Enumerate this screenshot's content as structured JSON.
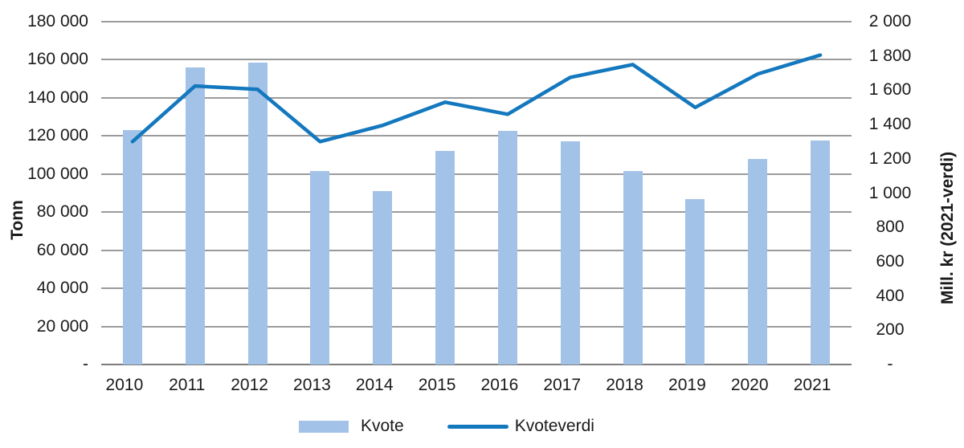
{
  "chart_data": {
    "type": "combo-bar-line",
    "categories": [
      "2010",
      "2011",
      "2012",
      "2013",
      "2014",
      "2015",
      "2016",
      "2017",
      "2018",
      "2019",
      "2020",
      "2021"
    ],
    "series": [
      {
        "name": "Kvote",
        "type": "bar",
        "axis": "left",
        "color": "#a3c2e8",
        "values": [
          123000,
          155900,
          158600,
          101500,
          91000,
          112100,
          122600,
          117200,
          101800,
          86800,
          107900,
          117700
        ]
      },
      {
        "name": "Kvoteverdi",
        "type": "line",
        "axis": "right",
        "color": "#1478be",
        "values": [
          1300,
          1625,
          1605,
          1300,
          1395,
          1530,
          1460,
          1675,
          1750,
          1500,
          1695,
          1805
        ]
      }
    ],
    "left_axis": {
      "title": "Tonn",
      "min": 0,
      "max": 180000,
      "step": 20000,
      "tick_labels": [
        "180 000",
        "160 000",
        "140 000",
        "120 000",
        "100 000",
        "80 000",
        "60 000",
        "40 000",
        "20 000",
        "-"
      ]
    },
    "right_axis": {
      "title": "Mill. kr (2021-verdi)",
      "min": 0,
      "max": 2000,
      "step": 200,
      "tick_labels": [
        "2 000",
        "1 800",
        "1 600",
        "1 400",
        "1 200",
        "1 000",
        "800",
        "600",
        "400",
        "200",
        "-"
      ]
    },
    "grid": true,
    "legend_position": "bottom"
  },
  "colors": {
    "bar": "#a3c2e8",
    "line": "#1478be",
    "gridline": "#9b9b9b",
    "axis_line": "#7d7d7d",
    "text": "#1a1a1a"
  }
}
